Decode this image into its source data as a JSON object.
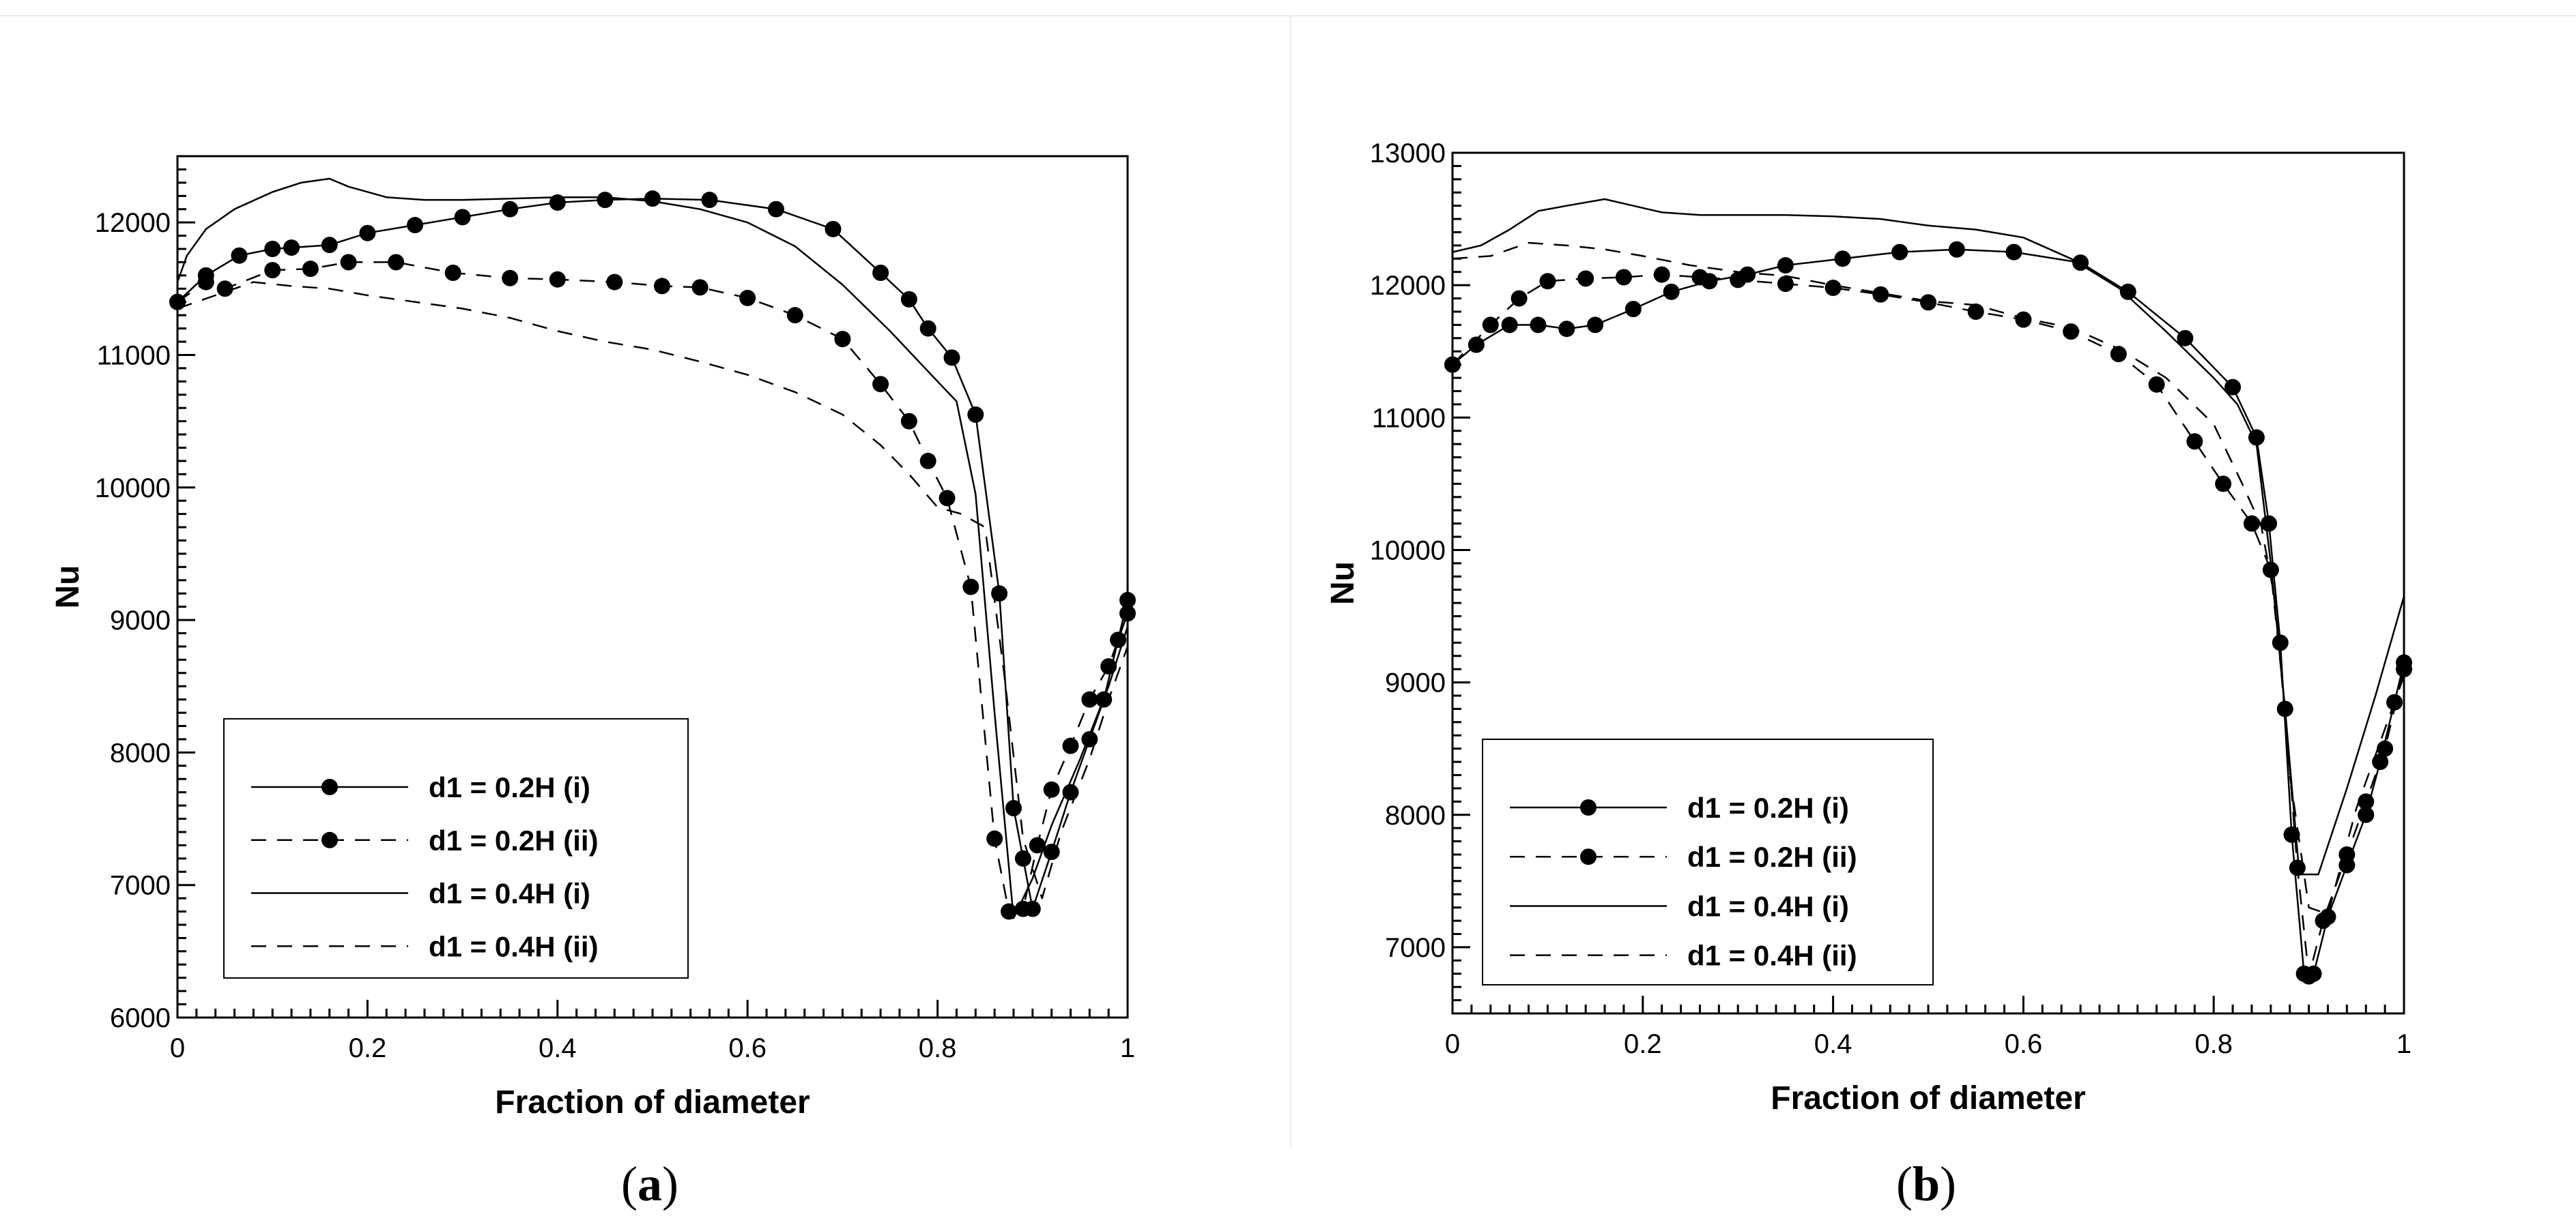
{
  "chart_data": [
    {
      "type": "line",
      "panel": "a",
      "caption": "a",
      "xlabel": "Fraction of diameter",
      "ylabel": "Nu",
      "xlim": [
        0,
        1
      ],
      "ylim": [
        6000,
        12500
      ],
      "xticks": [
        0,
        0.2,
        0.4,
        0.6,
        0.8,
        1
      ],
      "xtick_labels": [
        "0",
        "0.2",
        "0.4",
        "0.6",
        "0.8",
        "1"
      ],
      "yticks": [
        6000,
        7000,
        8000,
        9000,
        10000,
        11000,
        12000
      ],
      "ytick_labels": [
        "6000",
        "7000",
        "8000",
        "9000",
        "10000",
        "11000",
        "12000"
      ],
      "legend_position": "lower-left",
      "series": [
        {
          "name": "d1 = 0.2H (i)",
          "style": "solid-marker",
          "x": [
            0,
            0.03,
            0.065,
            0.1,
            0.12,
            0.16,
            0.2,
            0.25,
            0.3,
            0.35,
            0.4,
            0.45,
            0.5,
            0.56,
            0.63,
            0.69,
            0.74,
            0.77,
            0.79,
            0.815,
            0.84,
            0.865,
            0.88,
            0.89,
            0.9,
            0.92,
            0.94,
            0.96,
            0.975,
            0.99,
            1.0
          ],
          "y": [
            11400,
            11600,
            11750,
            11800,
            11810,
            11830,
            11920,
            11980,
            12040,
            12100,
            12150,
            12170,
            12180,
            12170,
            12100,
            11950,
            11620,
            11420,
            11200,
            10980,
            10550,
            9200,
            7580,
            7200,
            6820,
            7250,
            7700,
            8100,
            8400,
            8850,
            9150
          ]
        },
        {
          "name": "d1 = 0.2H (ii)",
          "style": "dashed-marker",
          "x": [
            0,
            0.03,
            0.05,
            0.1,
            0.14,
            0.18,
            0.23,
            0.29,
            0.35,
            0.4,
            0.46,
            0.51,
            0.55,
            0.6,
            0.65,
            0.7,
            0.74,
            0.77,
            0.79,
            0.81,
            0.835,
            0.86,
            0.875,
            0.89,
            0.905,
            0.92,
            0.94,
            0.96,
            0.98,
            1.0
          ],
          "y": [
            11400,
            11550,
            11500,
            11640,
            11650,
            11700,
            11700,
            11620,
            11580,
            11570,
            11550,
            11520,
            11510,
            11430,
            11300,
            11120,
            10780,
            10500,
            10200,
            9920,
            9250,
            7350,
            6800,
            6820,
            7300,
            7720,
            8050,
            8400,
            8650,
            9050
          ]
        },
        {
          "name": "d1 = 0.4H (i)",
          "style": "solid",
          "x": [
            0,
            0.01,
            0.03,
            0.06,
            0.1,
            0.13,
            0.16,
            0.18,
            0.22,
            0.26,
            0.3,
            0.35,
            0.4,
            0.45,
            0.5,
            0.55,
            0.6,
            0.65,
            0.7,
            0.75,
            0.8,
            0.82,
            0.84,
            0.86,
            0.88,
            0.9,
            0.92,
            0.95,
            0.98,
            1.0
          ],
          "y": [
            11550,
            11750,
            11950,
            12100,
            12230,
            12300,
            12330,
            12270,
            12190,
            12170,
            12170,
            12180,
            12190,
            12190,
            12160,
            12100,
            12000,
            11820,
            11530,
            11180,
            10800,
            10650,
            9950,
            8300,
            6750,
            7050,
            7450,
            7950,
            8500,
            8950
          ]
        },
        {
          "name": "d1 = 0.4H (ii)",
          "style": "dashed",
          "x": [
            0,
            0.04,
            0.08,
            0.12,
            0.16,
            0.2,
            0.25,
            0.3,
            0.35,
            0.4,
            0.45,
            0.5,
            0.55,
            0.6,
            0.65,
            0.7,
            0.74,
            0.77,
            0.8,
            0.825,
            0.85,
            0.87,
            0.89,
            0.91,
            0.93,
            0.96,
            0.98,
            1.0
          ],
          "y": [
            11350,
            11450,
            11550,
            11520,
            11500,
            11450,
            11400,
            11350,
            11280,
            11180,
            11100,
            11040,
            10950,
            10850,
            10720,
            10550,
            10320,
            10100,
            9850,
            9800,
            9700,
            8600,
            7350,
            6900,
            7400,
            7950,
            8400,
            8800
          ]
        }
      ]
    },
    {
      "type": "line",
      "panel": "b",
      "caption": "b",
      "xlabel": "Fraction of diameter",
      "ylabel": "Nu",
      "xlim": [
        0,
        1
      ],
      "ylim": [
        6500,
        13000
      ],
      "xticks": [
        0,
        0.2,
        0.4,
        0.6,
        0.8,
        1
      ],
      "xtick_labels": [
        "0",
        "0.2",
        "0.4",
        "0.6",
        "0.8",
        "1"
      ],
      "yticks": [
        7000,
        8000,
        9000,
        10000,
        11000,
        12000,
        13000
      ],
      "ytick_labels": [
        "7000",
        "8000",
        "9000",
        "10000",
        "11000",
        "12000",
        "13000"
      ],
      "legend_position": "lower-left",
      "series": [
        {
          "name": "d1 = 0.2H (i)",
          "style": "solid-marker",
          "x": [
            0,
            0.025,
            0.06,
            0.09,
            0.12,
            0.15,
            0.19,
            0.23,
            0.27,
            0.31,
            0.35,
            0.41,
            0.47,
            0.53,
            0.59,
            0.66,
            0.71,
            0.77,
            0.82,
            0.845,
            0.858,
            0.87,
            0.882,
            0.895,
            0.905,
            0.92,
            0.94,
            0.96,
            0.975,
            0.99,
            1.0
          ],
          "y": [
            11400,
            11550,
            11700,
            11700,
            11670,
            11700,
            11820,
            11950,
            12030,
            12080,
            12150,
            12200,
            12250,
            12270,
            12250,
            12170,
            11950,
            11600,
            11230,
            10850,
            10200,
            9300,
            7850,
            6800,
            6800,
            7230,
            7620,
            8000,
            8400,
            8850,
            9150
          ]
        },
        {
          "name": "d1 = 0.2H (ii)",
          "style": "dashed-marker",
          "x": [
            0,
            0.04,
            0.07,
            0.1,
            0.14,
            0.18,
            0.22,
            0.26,
            0.3,
            0.35,
            0.4,
            0.45,
            0.5,
            0.55,
            0.6,
            0.65,
            0.7,
            0.74,
            0.78,
            0.81,
            0.84,
            0.86,
            0.875,
            0.888,
            0.9,
            0.915,
            0.94,
            0.96,
            0.98,
            1.0
          ],
          "y": [
            11400,
            11700,
            11900,
            12030,
            12050,
            12060,
            12080,
            12060,
            12040,
            12010,
            11980,
            11930,
            11870,
            11800,
            11740,
            11650,
            11480,
            11250,
            10820,
            10500,
            10200,
            9850,
            8800,
            7600,
            6780,
            7200,
            7700,
            8100,
            8500,
            9100
          ]
        },
        {
          "name": "d1 = 0.4H (i)",
          "style": "solid",
          "x": [
            0,
            0.03,
            0.06,
            0.09,
            0.12,
            0.16,
            0.19,
            0.22,
            0.26,
            0.3,
            0.35,
            0.4,
            0.45,
            0.5,
            0.55,
            0.6,
            0.65,
            0.7,
            0.75,
            0.8,
            0.825,
            0.845,
            0.86,
            0.875,
            0.89,
            0.91,
            0.94,
            0.97,
            1.0
          ],
          "y": [
            12250,
            12300,
            12420,
            12560,
            12600,
            12650,
            12600,
            12550,
            12530,
            12530,
            12530,
            12520,
            12500,
            12450,
            12420,
            12360,
            12200,
            11980,
            11650,
            11300,
            11100,
            10800,
            9900,
            8800,
            7550,
            7550,
            8200,
            8900,
            9650
          ]
        },
        {
          "name": "d1 = 0.4H (ii)",
          "style": "dashed",
          "x": [
            0,
            0.04,
            0.08,
            0.12,
            0.16,
            0.2,
            0.25,
            0.3,
            0.35,
            0.4,
            0.45,
            0.5,
            0.55,
            0.6,
            0.65,
            0.7,
            0.75,
            0.8,
            0.83,
            0.85,
            0.865,
            0.88,
            0.9,
            0.92,
            0.95,
            0.98,
            1.0
          ],
          "y": [
            12200,
            12220,
            12320,
            12300,
            12270,
            12220,
            12150,
            12100,
            12070,
            12000,
            11940,
            11880,
            11850,
            11750,
            11680,
            11520,
            11300,
            10950,
            10500,
            10180,
            9600,
            8300,
            7300,
            7250,
            8050,
            8650,
            9050
          ]
        }
      ]
    }
  ]
}
